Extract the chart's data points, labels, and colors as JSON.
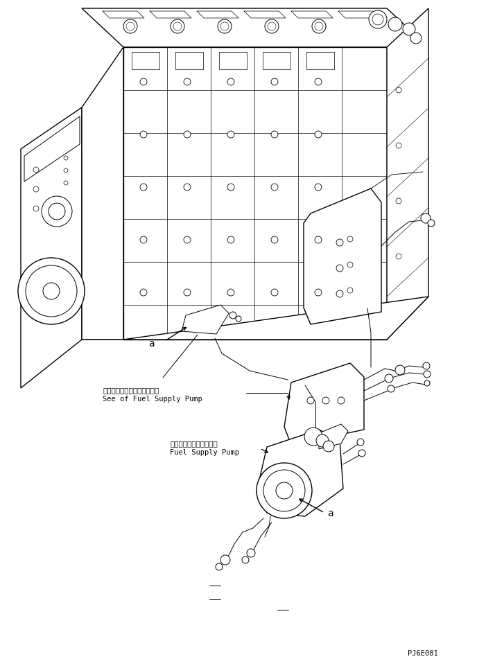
{
  "fig_width": 7.01,
  "fig_height": 9.51,
  "dpi": 100,
  "bg_color": "#ffffff",
  "line_color": "#000000",
  "lw": 0.7,
  "lw2": 1.0,
  "label1_jp": "フィエルサプライポンプ参照",
  "label1_en": "See of Fuel Supply Pump",
  "label2_jp": "フェエルサプライポンプ",
  "label2_en": "Fuel Supply Pump",
  "label_a": "a",
  "code": "PJ6E081",
  "font_size": 7.5,
  "font_size_code": 7.5
}
